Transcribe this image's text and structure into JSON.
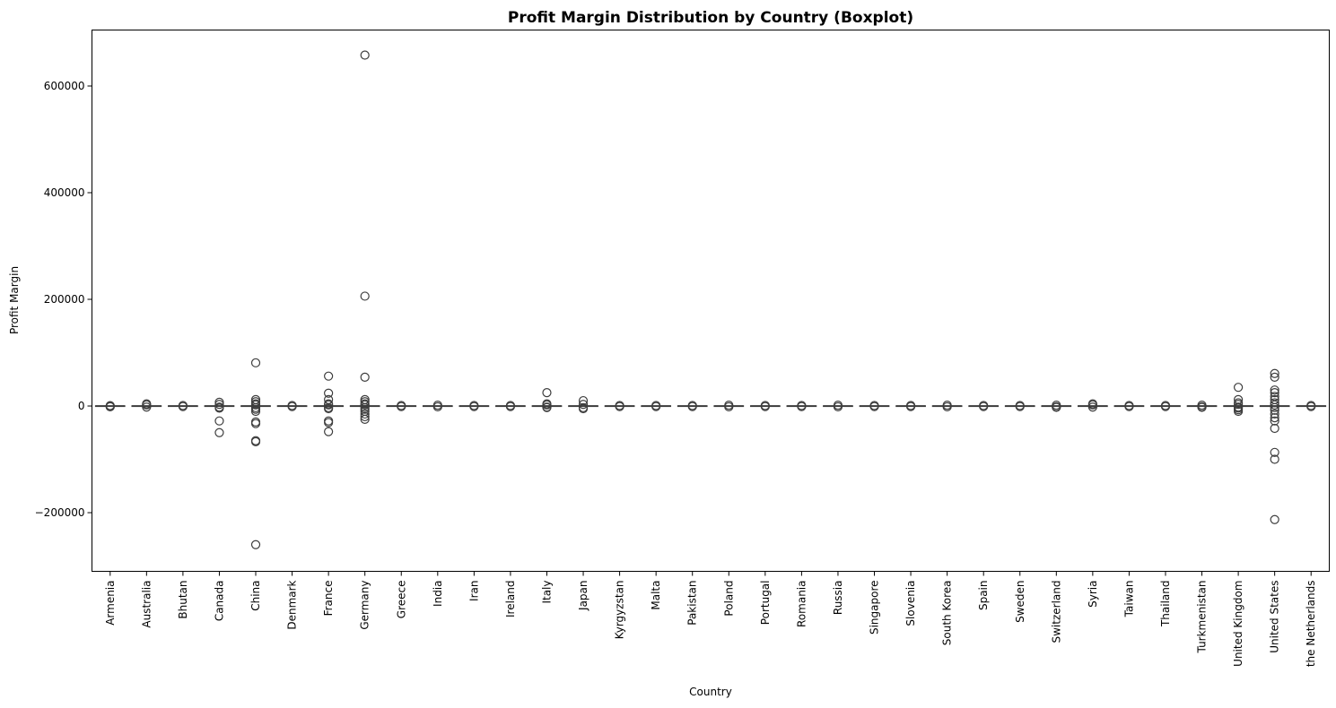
{
  "chart_data": {
    "type": "boxplot",
    "title": "Profit Margin Distribution by Country (Boxplot)",
    "xlabel": "Country",
    "ylabel": "Profit Margin",
    "ylim": [
      -310000,
      705000
    ],
    "yticks": [
      {
        "value": -200000,
        "label": "−200000"
      },
      {
        "value": 0,
        "label": "0"
      },
      {
        "value": 200000,
        "label": "200000"
      },
      {
        "value": 400000,
        "label": "400000"
      },
      {
        "value": 600000,
        "label": "600000"
      }
    ],
    "grid": false,
    "box_color": "#3274a1",
    "line_color": "#3d3d3d",
    "categories": [
      "Armenia",
      "Australia",
      "Bhutan",
      "Canada",
      "China",
      "Denmark",
      "France",
      "Germany",
      "Greece",
      "India",
      "Iran",
      "Ireland",
      "Italy",
      "Japan",
      "Kyrgyzstan",
      "Malta",
      "Pakistan",
      "Poland",
      "Portugal",
      "Romania",
      "Russia",
      "Singapore",
      "Slovenia",
      "South Korea",
      "Spain",
      "Sweden",
      "Switzerland",
      "Syria",
      "Taiwan",
      "Thailand",
      "Turkmenistan",
      "United Kingdom",
      "United States",
      "the Netherlands"
    ],
    "boxes": [
      {
        "q1": -300,
        "median": 0,
        "q3": 300,
        "outliers": [
          -800,
          800,
          -1500
        ]
      },
      {
        "q1": -300,
        "median": 0,
        "q3": 300,
        "outliers": [
          4000,
          2000,
          -2000
        ]
      },
      {
        "q1": -300,
        "median": 0,
        "q3": 300,
        "outliers": [
          1000,
          -1000
        ]
      },
      {
        "q1": -300,
        "median": 0,
        "q3": 300,
        "outliers": [
          7000,
          3000,
          -2000,
          -4000,
          -28000,
          -50000
        ]
      },
      {
        "q1": -300,
        "median": 0,
        "q3": 300,
        "outliers": [
          81000,
          12000,
          8000,
          4000,
          2000,
          -3000,
          -6000,
          -10000,
          -30000,
          -33000,
          -65000,
          -67000,
          -260000
        ]
      },
      {
        "q1": -300,
        "median": 0,
        "q3": 300,
        "outliers": [
          1000,
          -1000
        ]
      },
      {
        "q1": -300,
        "median": 0,
        "q3": 300,
        "outliers": [
          56000,
          24000,
          12000,
          4000,
          2000,
          -3000,
          -5000,
          -28000,
          -31000,
          -48000
        ]
      },
      {
        "q1": -300,
        "median": 0,
        "q3": 300,
        "outliers": [
          658000,
          206000,
          54000,
          12000,
          8000,
          4000,
          2000,
          -3000,
          -6000,
          -10000,
          -15000,
          -20000,
          -25000
        ]
      },
      {
        "q1": -300,
        "median": 0,
        "q3": 300,
        "outliers": [
          1000,
          -1000
        ]
      },
      {
        "q1": -300,
        "median": 0,
        "q3": 300,
        "outliers": [
          1500,
          -1500
        ]
      },
      {
        "q1": -300,
        "median": 0,
        "q3": 300,
        "outliers": [
          1000,
          -1000
        ]
      },
      {
        "q1": -300,
        "median": 0,
        "q3": 300,
        "outliers": [
          1000,
          -1000
        ]
      },
      {
        "q1": -300,
        "median": 0,
        "q3": 300,
        "outliers": [
          25000,
          4000,
          2000,
          -2000,
          -3000
        ]
      },
      {
        "q1": -300,
        "median": 0,
        "q3": 300,
        "outliers": [
          10000,
          3000,
          -3000,
          -5000
        ]
      },
      {
        "q1": -300,
        "median": 0,
        "q3": 300,
        "outliers": [
          1000,
          -1000
        ]
      },
      {
        "q1": -300,
        "median": 0,
        "q3": 300,
        "outliers": [
          1000,
          -1000
        ]
      },
      {
        "q1": -300,
        "median": 0,
        "q3": 300,
        "outliers": [
          1000,
          -1000
        ]
      },
      {
        "q1": -300,
        "median": 0,
        "q3": 300,
        "outliers": [
          1500,
          -1500
        ]
      },
      {
        "q1": -300,
        "median": 0,
        "q3": 300,
        "outliers": [
          1000,
          -1000
        ]
      },
      {
        "q1": -300,
        "median": 0,
        "q3": 300,
        "outliers": [
          1000,
          -1000
        ]
      },
      {
        "q1": -300,
        "median": 0,
        "q3": 300,
        "outliers": [
          1500,
          -1500
        ]
      },
      {
        "q1": -300,
        "median": 0,
        "q3": 300,
        "outliers": [
          1000,
          -1000
        ]
      },
      {
        "q1": -300,
        "median": 0,
        "q3": 300,
        "outliers": [
          1000,
          -1000
        ]
      },
      {
        "q1": -300,
        "median": 0,
        "q3": 300,
        "outliers": [
          1500,
          -1500
        ]
      },
      {
        "q1": -300,
        "median": 0,
        "q3": 300,
        "outliers": [
          1000,
          -1000
        ]
      },
      {
        "q1": -300,
        "median": 0,
        "q3": 300,
        "outliers": [
          1000,
          -1000
        ]
      },
      {
        "q1": -300,
        "median": 0,
        "q3": 300,
        "outliers": [
          1500,
          -1500,
          -2500
        ]
      },
      {
        "q1": -300,
        "median": 0,
        "q3": 300,
        "outliers": [
          4000,
          2000,
          -2000
        ]
      },
      {
        "q1": -300,
        "median": 0,
        "q3": 300,
        "outliers": [
          1000,
          -1000
        ]
      },
      {
        "q1": -300,
        "median": 0,
        "q3": 300,
        "outliers": [
          1000,
          -1000
        ]
      },
      {
        "q1": -300,
        "median": 0,
        "q3": 300,
        "outliers": [
          1500,
          -1500,
          -2500
        ]
      },
      {
        "q1": -300,
        "median": 0,
        "q3": 300,
        "outliers": [
          35000,
          12000,
          6000,
          3000,
          -2000,
          -4000,
          -7000,
          -10000
        ]
      },
      {
        "q1": -300,
        "median": 0,
        "q3": 300,
        "outliers": [
          61000,
          54000,
          30000,
          25000,
          18000,
          12000,
          6000,
          2000,
          -3000,
          -8000,
          -15000,
          -22000,
          -28000,
          -42000,
          -87000,
          -100000,
          -213000
        ]
      },
      {
        "q1": -300,
        "median": 0,
        "q3": 300,
        "outliers": [
          1000,
          -1000
        ]
      }
    ]
  }
}
